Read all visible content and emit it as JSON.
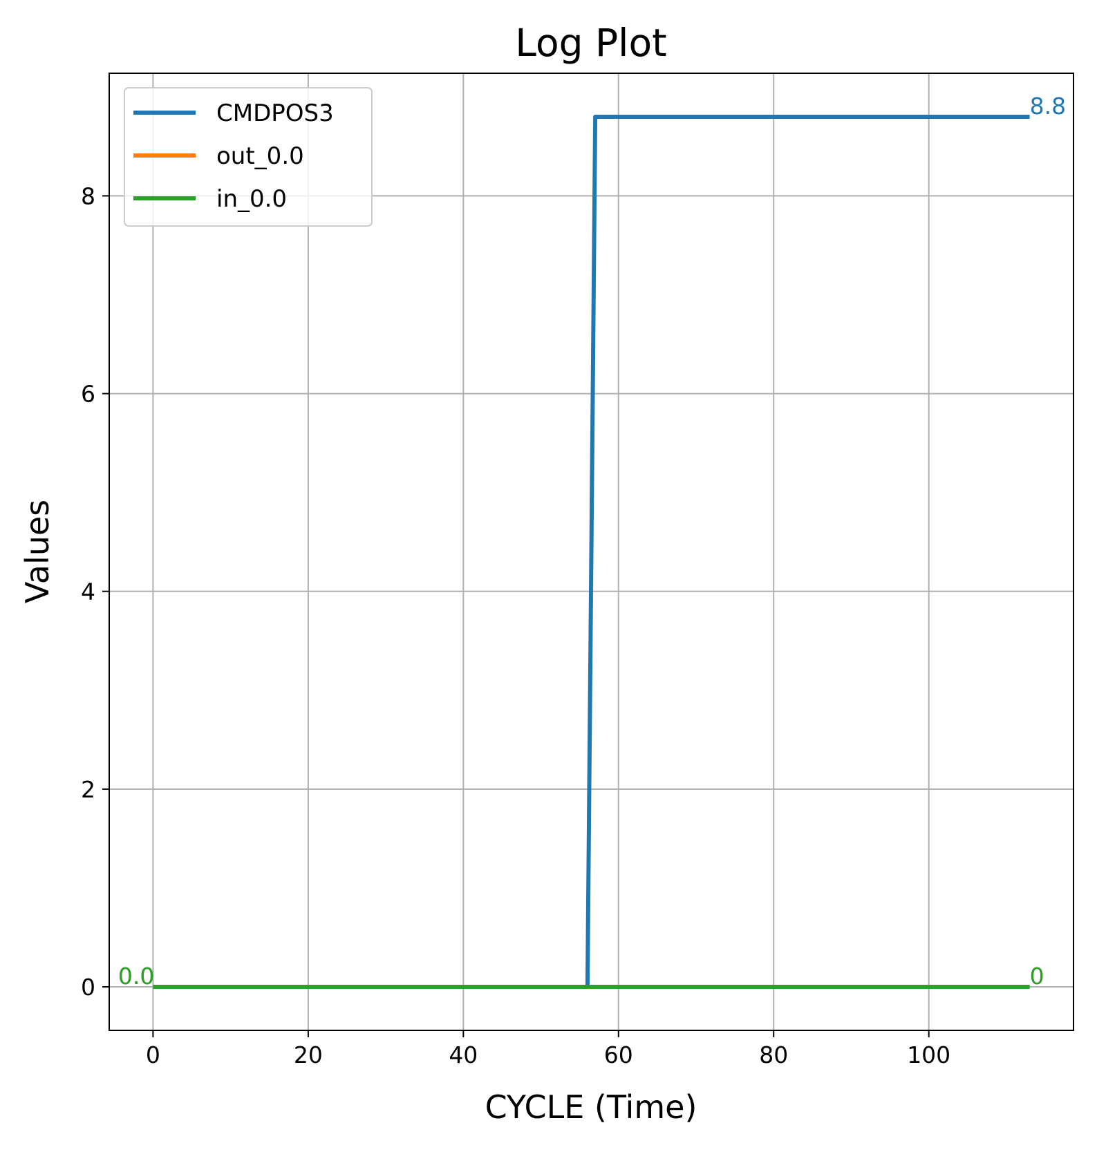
{
  "chart_data": {
    "type": "line",
    "title": "Log Plot",
    "xlabel": "CYCLE (Time)",
    "ylabel": "Values",
    "xlim": [
      -5.65,
      118.65
    ],
    "ylim": [
      -0.44,
      9.24
    ],
    "xticks": [
      0,
      20,
      40,
      60,
      80,
      100
    ],
    "yticks": [
      0,
      2,
      4,
      6,
      8
    ],
    "grid": true,
    "legend_position": "top-left",
    "series": [
      {
        "name": "CMDPOS3",
        "color": "#1f77b4",
        "x": [
          0,
          56,
          57,
          113
        ],
        "y": [
          0,
          0,
          8.8,
          8.8
        ]
      },
      {
        "name": "out_0.0",
        "color": "#ff7f0e",
        "x": [
          0,
          113
        ],
        "y": [
          0,
          0
        ]
      },
      {
        "name": "in_0.0",
        "color": "#2ca02c",
        "x": [
          0,
          113
        ],
        "y": [
          0,
          0
        ]
      }
    ],
    "annotations": [
      {
        "text": "0.0",
        "x": 0,
        "y": 0,
        "color": "#1f77b4",
        "anchor": "end"
      },
      {
        "text": "0.0",
        "x": 0,
        "y": 0,
        "color": "#ff7f0e",
        "anchor": "end"
      },
      {
        "text": "0.0",
        "x": 0,
        "y": 0,
        "color": "#2ca02c",
        "anchor": "end"
      },
      {
        "text": "8.8",
        "x": 113,
        "y": 8.8,
        "color": "#1f77b4",
        "anchor": "start"
      },
      {
        "text": "0",
        "x": 113,
        "y": 0,
        "color": "#ff7f0e",
        "anchor": "start"
      },
      {
        "text": "0",
        "x": 113,
        "y": 0,
        "color": "#2ca02c",
        "anchor": "start"
      }
    ]
  }
}
